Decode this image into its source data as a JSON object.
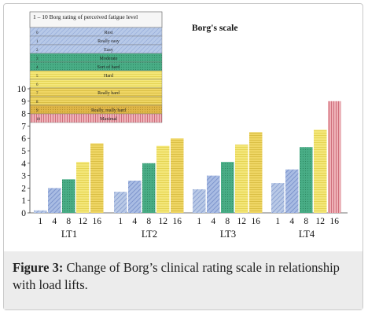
{
  "chart_data": {
    "type": "bar",
    "title": "Borg's scale",
    "ylim": [
      0,
      10
    ],
    "yticks": [
      "0",
      "1",
      "2",
      "3",
      "4",
      "5",
      "6",
      "7",
      "8",
      "9",
      "10"
    ],
    "groups": [
      {
        "name": "LT1",
        "loads": [
          "1",
          "4",
          "8",
          "12",
          "16"
        ],
        "values": [
          0.2,
          2.0,
          2.7,
          4.1,
          5.6
        ]
      },
      {
        "name": "LT2",
        "loads": [
          "1",
          "4",
          "8",
          "12",
          "16"
        ],
        "values": [
          1.7,
          2.6,
          4.0,
          5.4,
          6.0
        ]
      },
      {
        "name": "LT3",
        "loads": [
          "1",
          "4",
          "8",
          "12",
          "16"
        ],
        "values": [
          1.9,
          3.0,
          4.1,
          5.5,
          6.5
        ]
      },
      {
        "name": "LT4",
        "loads": [
          "1",
          "4",
          "8",
          "12",
          "16"
        ],
        "values": [
          2.4,
          3.5,
          5.3,
          6.7,
          9.0
        ]
      }
    ],
    "legend": {
      "header": "1 – 10 Borg rating of perceived fatigue level",
      "rows": [
        {
          "level": "0",
          "label": "Rest"
        },
        {
          "level": "1",
          "label": "Really easy"
        },
        {
          "level": "2",
          "label": "Easy"
        },
        {
          "level": "3",
          "label": "Moderate"
        },
        {
          "level": "4",
          "label": "Sort of hard"
        },
        {
          "level": "5",
          "label": "Hard"
        },
        {
          "level": "6",
          "label": ""
        },
        {
          "level": "7",
          "label": "Really hard"
        },
        {
          "level": "8",
          "label": ""
        },
        {
          "level": "9",
          "label": "Really, really hard"
        },
        {
          "level": "10",
          "label": "Maximal"
        }
      ]
    }
  },
  "colors": {
    "level0": "#a7c4d6",
    "level1": "#9fb3dc",
    "level2": "#9fb3dc",
    "level3": "#3fa37c",
    "level4": "#3fa37c",
    "level5": "#f0e060",
    "level6": "#f0e060",
    "level7": "#efd95e",
    "level8": "#efd95e",
    "level9": "#d9ad3c",
    "level10": "#dd8a94",
    "bar_load1": "#9fb3dc",
    "bar_load4": "#8aa4d8",
    "bar_load8": "#3fa37c",
    "bar_load12": "#f0e060",
    "bar_load16": "#e8c84e",
    "bar_lt4_16": "#dd8a94"
  },
  "caption": {
    "label": "Figure 3:",
    "text": "Change of Borg’s clinical rating scale in relationship with load lifts."
  }
}
